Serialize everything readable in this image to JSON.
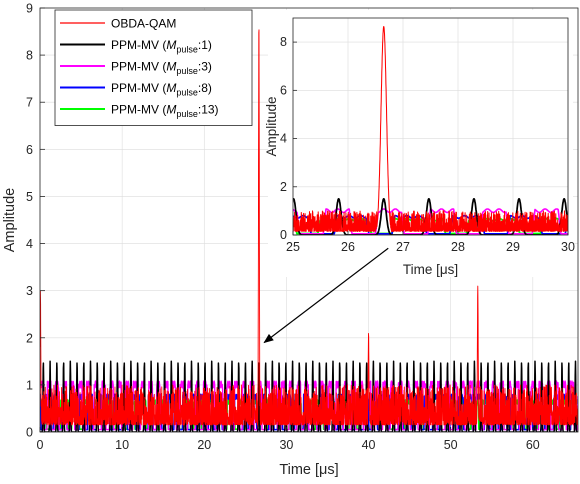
{
  "chart_data": {
    "type": "line",
    "xlabel": "Time [μs]",
    "ylabel": "Amplitude",
    "xlim": [
      0,
      65.5
    ],
    "ylim": [
      0,
      9
    ],
    "xticks": [
      "0",
      "10",
      "20",
      "30",
      "40",
      "50",
      "60"
    ],
    "yticks": [
      "0",
      "1",
      "2",
      "3",
      "4",
      "5",
      "6",
      "7",
      "8",
      "9"
    ],
    "grid": true,
    "legend": {
      "placement": "top-left",
      "entries": [
        {
          "label": "OBDA-QAM",
          "color": "#ff0000"
        },
        {
          "label": "PPM-MV (M_pulse:1)",
          "base": "PPM-MV (",
          "var": "M",
          "sub": "pulse",
          "tail": ":1)",
          "color": "#000000"
        },
        {
          "label": "PPM-MV (M_pulse:3)",
          "base": "PPM-MV (",
          "var": "M",
          "sub": "pulse",
          "tail": ":3)",
          "color": "#ff00ff"
        },
        {
          "label": "PPM-MV (M_pulse:8)",
          "base": "PPM-MV (",
          "var": "M",
          "sub": "pulse",
          "tail": ":8)",
          "color": "#0000ff"
        },
        {
          "label": "PPM-MV (M_pulse:13)",
          "base": "PPM-MV (",
          "var": "M",
          "sub": "pulse",
          "tail": ":13)",
          "color": "#00ff00"
        }
      ]
    },
    "series": [
      {
        "name": "OBDA-QAM",
        "color": "#ff0000",
        "peaks": [
          {
            "x": 0.05,
            "y": 3.0
          },
          {
            "x": 26.65,
            "y": 8.65
          },
          {
            "x": 40.0,
            "y": 2.1
          },
          {
            "x": 53.3,
            "y": 3.1
          }
        ],
        "baseline_max": 1.0
      },
      {
        "name": "PPM-MV (M_pulse:1)",
        "color": "#000000",
        "pulse_amplitude": 1.5,
        "pulse_period": 0.82,
        "pulse_width": 0.14,
        "floor": 0.0
      },
      {
        "name": "PPM-MV (M_pulse:3)",
        "color": "#ff00ff",
        "pulse_amplitude": 1.08,
        "floor": 0.05
      },
      {
        "name": "PPM-MV (M_pulse:8)",
        "color": "#0000ff",
        "pulse_amplitude": 0.8,
        "floor": 0.05
      },
      {
        "name": "PPM-MV (M_pulse:13)",
        "color": "#00ff00",
        "pulse_amplitude": 0.68,
        "floor": 0.06
      }
    ],
    "annotations": [
      {
        "type": "arrow",
        "from": [
          42.4,
          3.9
        ],
        "to": [
          27.3,
          1.9
        ]
      }
    ],
    "inset": {
      "xlabel": "Time [μs]",
      "ylabel": "Amplitude",
      "xlim": [
        25,
        30
      ],
      "ylim": [
        0,
        9
      ],
      "xticks": [
        "25",
        "26",
        "27",
        "28",
        "29",
        "30"
      ],
      "yticks": [
        "0",
        "2",
        "4",
        "6",
        "8"
      ]
    }
  }
}
